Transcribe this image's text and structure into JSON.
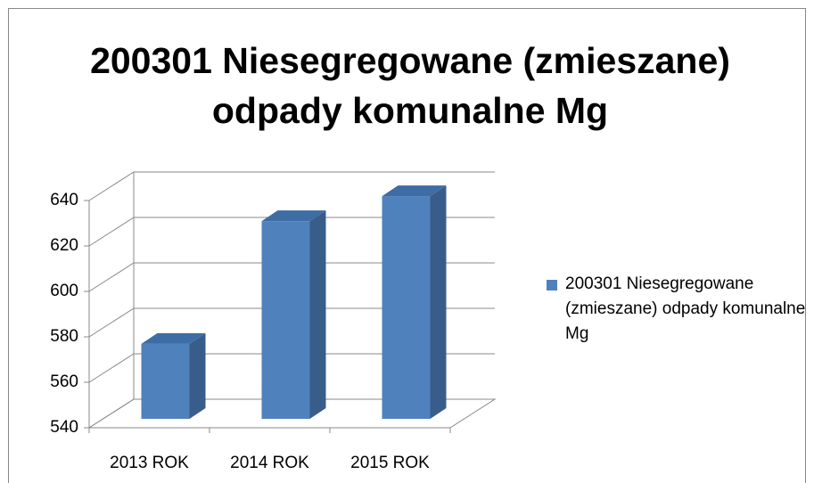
{
  "chart_data": {
    "type": "bar3d",
    "title": "200301 Niesegregowane (zmieszane) odpady komunalne Mg",
    "categories": [
      "2013 ROK",
      "2014 ROK",
      "2015 ROK"
    ],
    "series": [
      {
        "name": "200301 Niesegregowane (zmieszane) odpady komunalne Mg",
        "color": "#4f81bd",
        "values": [
          573,
          627,
          638
        ]
      }
    ],
    "ylim": [
      540,
      640
    ],
    "yticks": [
      540,
      560,
      580,
      600,
      620,
      640
    ],
    "grid": true,
    "legend": "right"
  }
}
